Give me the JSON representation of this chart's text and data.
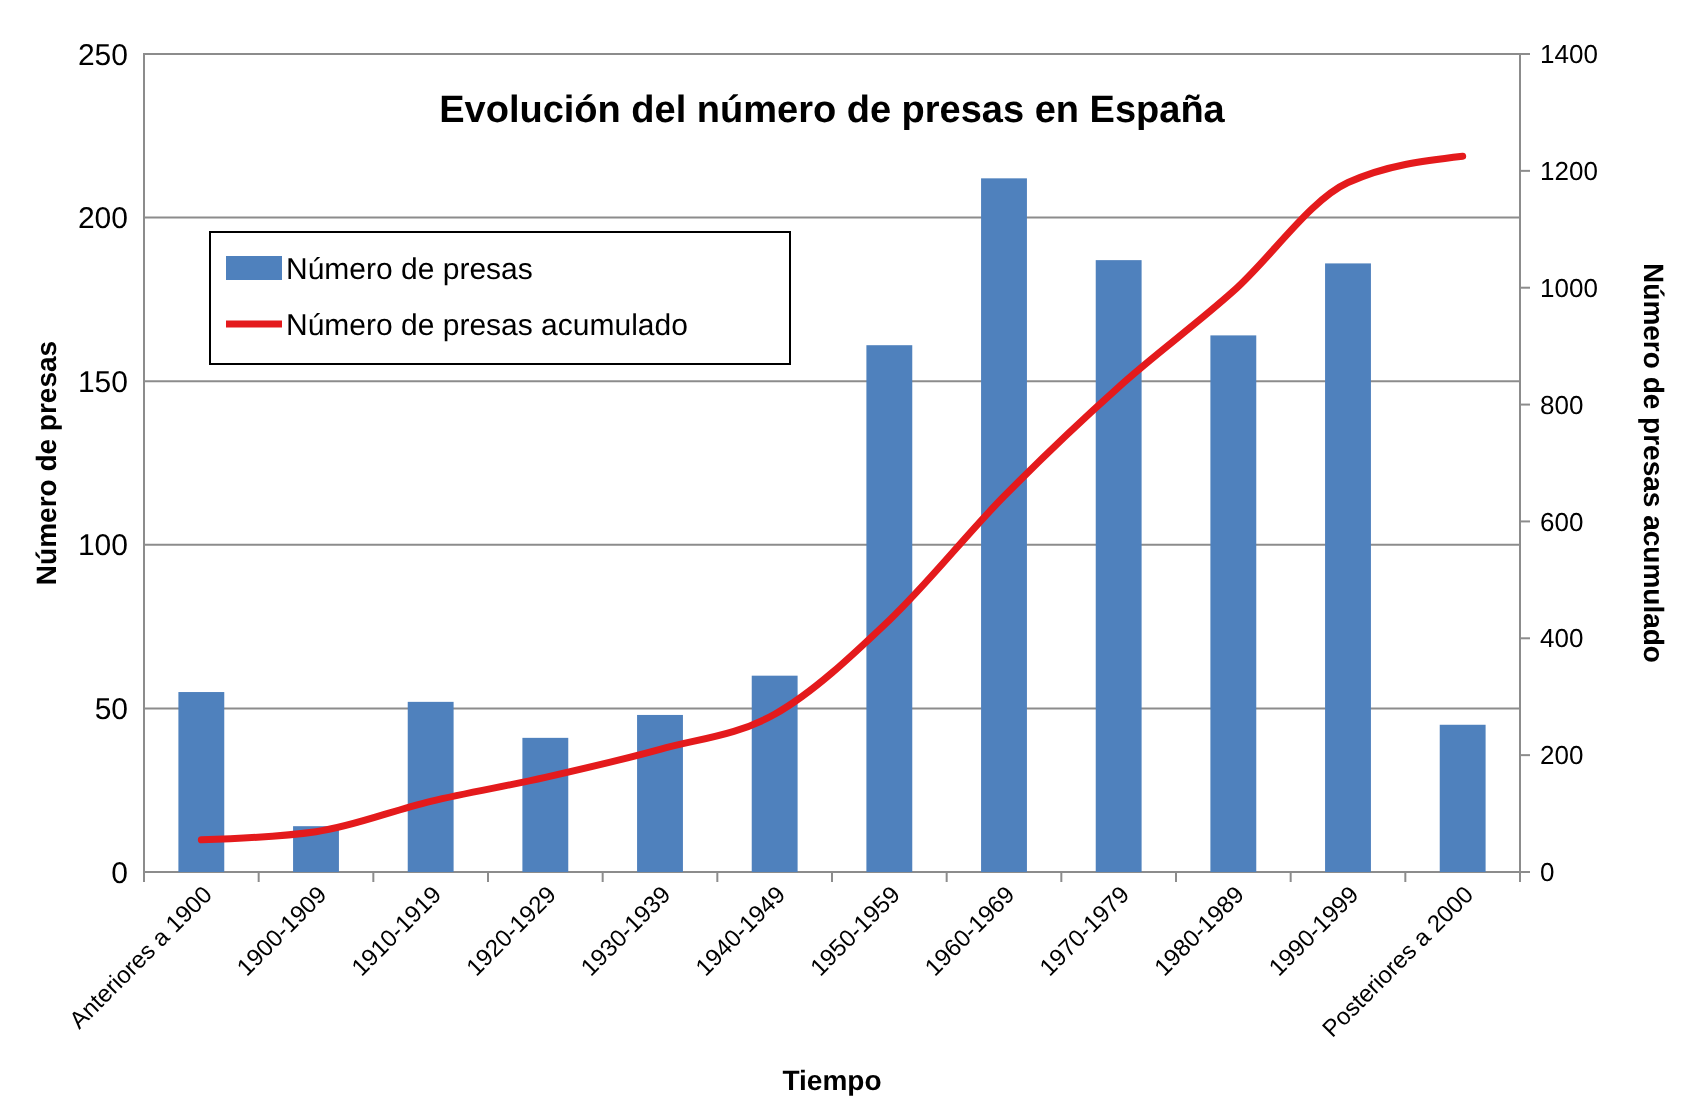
{
  "chart_data": {
    "type": "bar",
    "title": "Evolución del número de presas en España",
    "xlabel": "Tiempo",
    "ylabel": "Número de presas",
    "y2label": "Número de presas acumulado",
    "categories": [
      "Anteriores a 1900",
      "1900-1909",
      "1910-1919",
      "1920-1929",
      "1930-1939",
      "1940-1949",
      "1950-1959",
      "1960-1969",
      "1970-1979",
      "1980-1989",
      "1990-1999",
      "Posteriores a 2000"
    ],
    "series": [
      {
        "name": "Número de presas",
        "color": "#4f81bd",
        "values": [
          55,
          14,
          52,
          41,
          48,
          60,
          161,
          212,
          187,
          164,
          186,
          45
        ]
      },
      {
        "name": "Número de presas acumulado",
        "type": "line",
        "axis": "y2",
        "color": "#e41a1c",
        "values": [
          55,
          69,
          121,
          162,
          210,
          270,
          431,
          643,
          830,
          994,
          1180,
          1225
        ]
      }
    ],
    "ylim": [
      0,
      250
    ],
    "yticks": [
      0,
      50,
      100,
      150,
      200,
      250
    ],
    "y2lim": [
      0,
      1400
    ],
    "y2ticks": [
      0,
      200,
      400,
      600,
      800,
      1000,
      1200,
      1400
    ],
    "grid": "y",
    "legend": "top left",
    "marker": "none"
  }
}
